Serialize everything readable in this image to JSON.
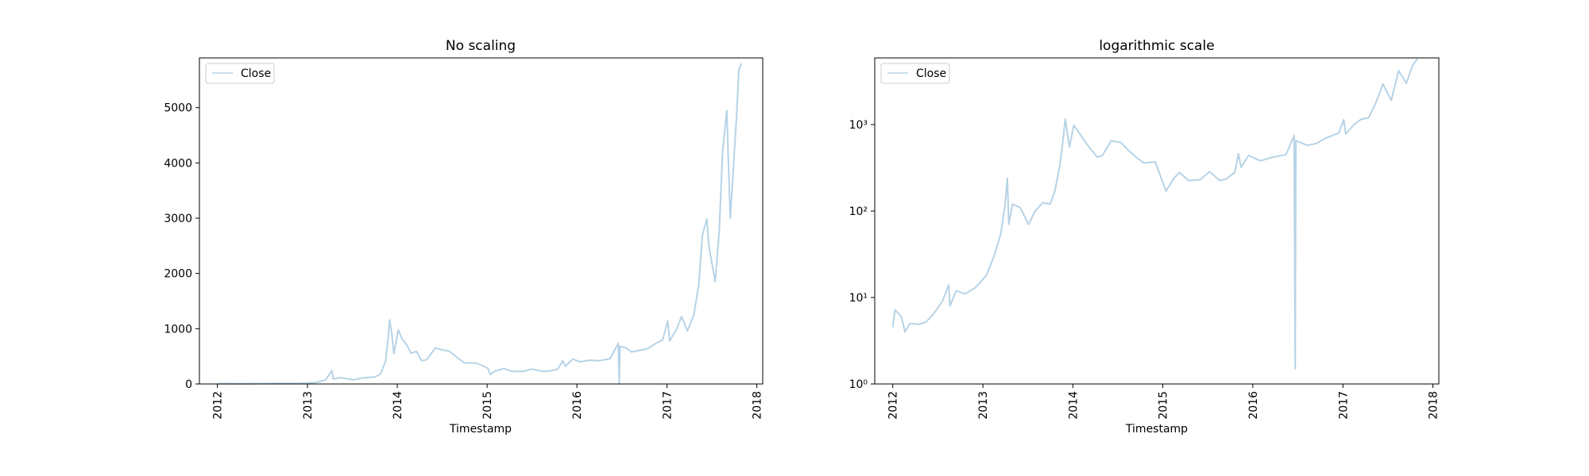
{
  "chart_data": [
    {
      "type": "line",
      "title": "No scaling",
      "xlabel": "Timestamp",
      "ylabel": "",
      "yscale": "linear",
      "xlim": [
        "2011-10-20",
        "2018-01-25"
      ],
      "ylim": [
        0,
        5900
      ],
      "yticks": [
        0,
        1000,
        2000,
        3000,
        4000,
        5000
      ],
      "ytick_labels": [
        "0",
        "1000",
        "2000",
        "3000",
        "4000",
        "5000"
      ],
      "xticks": [
        "2012-01-01",
        "2013-01-01",
        "2014-01-01",
        "2015-01-01",
        "2016-01-01",
        "2017-01-01",
        "2018-01-01"
      ],
      "xtick_labels": [
        "2012",
        "2013",
        "2014",
        "2015",
        "2016",
        "2017",
        "2018"
      ],
      "grid": false,
      "legend": {
        "location": "upper-left",
        "entries": [
          "Close"
        ]
      },
      "series": [
        {
          "name": "Close",
          "color": "#b7d3e6",
          "points": [
            [
              "2012-01-01",
              4.5
            ],
            [
              "2012-02-15",
              6
            ],
            [
              "2012-04-01",
              5
            ],
            [
              "2012-06-01",
              5.5
            ],
            [
              "2012-08-15",
              11
            ],
            [
              "2012-10-01",
              12
            ],
            [
              "2012-12-01",
              13
            ],
            [
              "2013-02-01",
              25
            ],
            [
              "2013-03-15",
              70
            ],
            [
              "2013-04-10",
              240
            ],
            [
              "2013-04-16",
              90
            ],
            [
              "2013-05-15",
              115
            ],
            [
              "2013-07-05",
              75
            ],
            [
              "2013-08-15",
              110
            ],
            [
              "2013-10-01",
              125
            ],
            [
              "2013-10-25",
              180
            ],
            [
              "2013-11-15",
              420
            ],
            [
              "2013-11-25",
              850
            ],
            [
              "2013-12-01",
              1160
            ],
            [
              "2013-12-10",
              900
            ],
            [
              "2013-12-18",
              550
            ],
            [
              "2014-01-05",
              980
            ],
            [
              "2014-01-20",
              820
            ],
            [
              "2014-02-10",
              700
            ],
            [
              "2014-02-25",
              560
            ],
            [
              "2014-03-20",
              590
            ],
            [
              "2014-04-10",
              420
            ],
            [
              "2014-05-01",
              440
            ],
            [
              "2014-06-05",
              650
            ],
            [
              "2014-07-01",
              620
            ],
            [
              "2014-08-01",
              590
            ],
            [
              "2014-09-01",
              480
            ],
            [
              "2014-10-01",
              380
            ],
            [
              "2014-11-15",
              380
            ],
            [
              "2014-12-15",
              330
            ],
            [
              "2015-01-05",
              280
            ],
            [
              "2015-01-14",
              170
            ],
            [
              "2015-02-01",
              230
            ],
            [
              "2015-03-10",
              280
            ],
            [
              "2015-04-15",
              225
            ],
            [
              "2015-06-01",
              230
            ],
            [
              "2015-07-01",
              270
            ],
            [
              "2015-08-15",
              230
            ],
            [
              "2015-09-15",
              235
            ],
            [
              "2015-10-15",
              270
            ],
            [
              "2015-11-04",
              420
            ],
            [
              "2015-11-15",
              320
            ],
            [
              "2015-12-15",
              450
            ],
            [
              "2016-01-15",
              400
            ],
            [
              "2016-02-20",
              430
            ],
            [
              "2016-04-01",
              420
            ],
            [
              "2016-05-15",
              460
            ],
            [
              "2016-06-17",
              740
            ],
            [
              "2016-06-21",
              0
            ],
            [
              "2016-06-24",
              680
            ],
            [
              "2016-07-15",
              660
            ],
            [
              "2016-08-10",
              580
            ],
            [
              "2016-09-15",
              610
            ],
            [
              "2016-10-15",
              640
            ],
            [
              "2016-11-15",
              730
            ],
            [
              "2016-12-15",
              800
            ],
            [
              "2017-01-04",
              1140
            ],
            [
              "2017-01-12",
              780
            ],
            [
              "2017-02-10",
              1000
            ],
            [
              "2017-03-01",
              1220
            ],
            [
              "2017-03-25",
              960
            ],
            [
              "2017-04-20",
              1250
            ],
            [
              "2017-05-10",
              1800
            ],
            [
              "2017-05-25",
              2700
            ],
            [
              "2017-06-12",
              2980
            ],
            [
              "2017-06-20",
              2500
            ],
            [
              "2017-07-16",
              1850
            ],
            [
              "2017-08-01",
              2750
            ],
            [
              "2017-08-15",
              4200
            ],
            [
              "2017-09-01",
              4950
            ],
            [
              "2017-09-15",
              3000
            ],
            [
              "2017-09-25",
              3700
            ],
            [
              "2017-10-10",
              4800
            ],
            [
              "2017-10-20",
              5700
            ],
            [
              "2017-10-31",
              5800
            ]
          ]
        }
      ]
    },
    {
      "type": "line",
      "title": "logarithmic scale",
      "xlabel": "Timestamp",
      "ylabel": "",
      "yscale": "log",
      "xlim": [
        "2011-10-20",
        "2018-01-25"
      ],
      "ylim": [
        1,
        5900
      ],
      "yticks": [
        1,
        10,
        100,
        1000
      ],
      "ytick_labels": [
        "10⁰",
        "10¹",
        "10²",
        "10³"
      ],
      "xticks": [
        "2012-01-01",
        "2013-01-01",
        "2014-01-01",
        "2015-01-01",
        "2016-01-01",
        "2017-01-01",
        "2018-01-01"
      ],
      "xtick_labels": [
        "2012",
        "2013",
        "2014",
        "2015",
        "2016",
        "2017",
        "2018"
      ],
      "grid": false,
      "legend": {
        "location": "upper-left",
        "entries": [
          "Close"
        ]
      },
      "series": [
        {
          "name": "Close",
          "color": "#b7d3e6",
          "points": [
            [
              "2012-01-01",
              4.5
            ],
            [
              "2012-01-10",
              7.2
            ],
            [
              "2012-02-05",
              6
            ],
            [
              "2012-02-20",
              4
            ],
            [
              "2012-03-10",
              5
            ],
            [
              "2012-04-15",
              4.9
            ],
            [
              "2012-05-15",
              5.2
            ],
            [
              "2012-06-15",
              6.5
            ],
            [
              "2012-07-20",
              9
            ],
            [
              "2012-08-15",
              14
            ],
            [
              "2012-08-20",
              8
            ],
            [
              "2012-09-15",
              12
            ],
            [
              "2012-10-20",
              11
            ],
            [
              "2012-12-01",
              13
            ],
            [
              "2013-01-15",
              18
            ],
            [
              "2013-02-15",
              30
            ],
            [
              "2013-03-15",
              55
            ],
            [
              "2013-04-01",
              120
            ],
            [
              "2013-04-10",
              240
            ],
            [
              "2013-04-16",
              70
            ],
            [
              "2013-05-01",
              120
            ],
            [
              "2013-06-01",
              110
            ],
            [
              "2013-07-05",
              70
            ],
            [
              "2013-08-01",
              100
            ],
            [
              "2013-09-01",
              125
            ],
            [
              "2013-10-01",
              120
            ],
            [
              "2013-10-20",
              170
            ],
            [
              "2013-11-10",
              350
            ],
            [
              "2013-11-25",
              800
            ],
            [
              "2013-12-01",
              1160
            ],
            [
              "2013-12-18",
              550
            ],
            [
              "2014-01-05",
              980
            ],
            [
              "2014-02-10",
              700
            ],
            [
              "2014-03-01",
              580
            ],
            [
              "2014-04-10",
              420
            ],
            [
              "2014-05-01",
              440
            ],
            [
              "2014-06-05",
              650
            ],
            [
              "2014-07-15",
              620
            ],
            [
              "2014-08-15",
              500
            ],
            [
              "2014-09-15",
              420
            ],
            [
              "2014-10-15",
              360
            ],
            [
              "2014-12-01",
              370
            ],
            [
              "2015-01-14",
              170
            ],
            [
              "2015-02-15",
              240
            ],
            [
              "2015-03-10",
              280
            ],
            [
              "2015-04-15",
              225
            ],
            [
              "2015-06-01",
              230
            ],
            [
              "2015-07-10",
              285
            ],
            [
              "2015-08-20",
              225
            ],
            [
              "2015-09-15",
              235
            ],
            [
              "2015-10-20",
              280
            ],
            [
              "2015-11-04",
              460
            ],
            [
              "2015-11-15",
              320
            ],
            [
              "2015-12-15",
              440
            ],
            [
              "2016-02-01",
              380
            ],
            [
              "2016-03-15",
              415
            ],
            [
              "2016-05-15",
              450
            ],
            [
              "2016-06-17",
              750
            ],
            [
              "2016-06-21",
              1.5
            ],
            [
              "2016-06-24",
              650
            ],
            [
              "2016-08-10",
              575
            ],
            [
              "2016-09-15",
              605
            ],
            [
              "2016-10-25",
              700
            ],
            [
              "2016-12-15",
              800
            ],
            [
              "2017-01-04",
              1140
            ],
            [
              "2017-01-12",
              780
            ],
            [
              "2017-02-15",
              1000
            ],
            [
              "2017-03-15",
              1150
            ],
            [
              "2017-04-15",
              1200
            ],
            [
              "2017-05-15",
              1800
            ],
            [
              "2017-06-12",
              2950
            ],
            [
              "2017-07-16",
              1900
            ],
            [
              "2017-08-15",
              4200
            ],
            [
              "2017-09-15",
              3000
            ],
            [
              "2017-10-10",
              4800
            ],
            [
              "2017-10-31",
              5800
            ]
          ]
        }
      ]
    }
  ]
}
